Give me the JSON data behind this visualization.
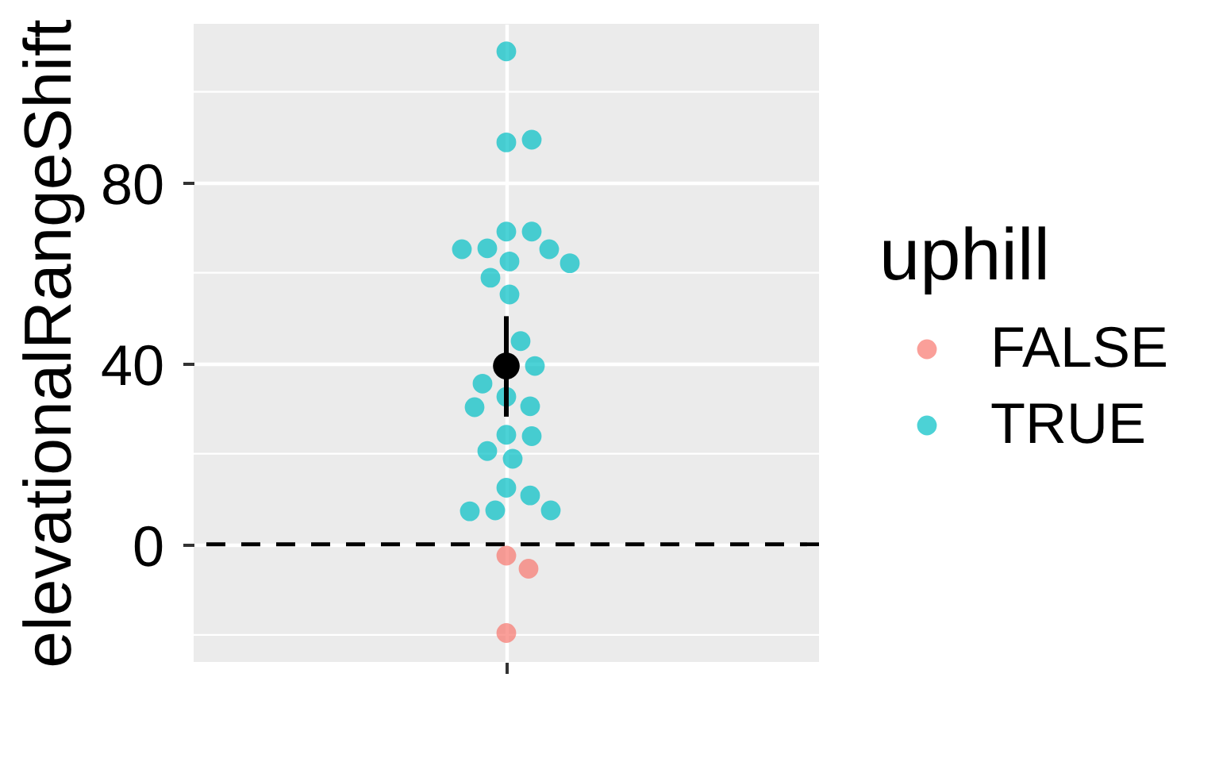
{
  "chart_data": {
    "type": "scatter",
    "ylabel": "elevationalRangeShift",
    "legend_title": "uphill",
    "categories": [
      null
    ],
    "tick_labels": "y",
    "ylim": [
      -26,
      115
    ],
    "yticks": [
      0,
      40,
      80
    ],
    "grid": true,
    "legend": "right",
    "marker": "circle",
    "ref_lines": [
      {
        "axis": "y",
        "value": 0,
        "color": "#000000",
        "line_style": "dashed"
      }
    ],
    "series": [
      {
        "name": "FALSE",
        "color": "#F8766D",
        "x": [
          null,
          null,
          null
        ],
        "values": [
          -2.5,
          -5.4,
          -19.6
        ]
      },
      {
        "name": "TRUE",
        "color": "#00BFC4",
        "x": [
          null,
          null,
          null,
          null,
          null,
          null,
          null,
          null,
          null,
          null,
          null,
          null,
          null,
          null,
          null,
          null,
          null,
          null,
          null,
          null,
          null,
          null,
          null,
          null,
          null,
          null,
          null
        ],
        "values": [
          108.9,
          88.8,
          89.4,
          69.1,
          69.1,
          65.4,
          65.2,
          65.2,
          62.5,
          62.1,
          58.9,
          55.2,
          44.9,
          39.4,
          35.5,
          32.6,
          30.5,
          30.3,
          24.2,
          23.9,
          20.6,
          18.9,
          12.5,
          10.8,
          7.5,
          7.3,
          7.5
        ]
      },
      {
        "type": "scatter",
        "color": "#000000",
        "x": [
          null
        ],
        "values": [
          39.4
        ],
        "errors": [
          [
            28.2,
            50.4
          ]
        ]
      }
    ]
  }
}
